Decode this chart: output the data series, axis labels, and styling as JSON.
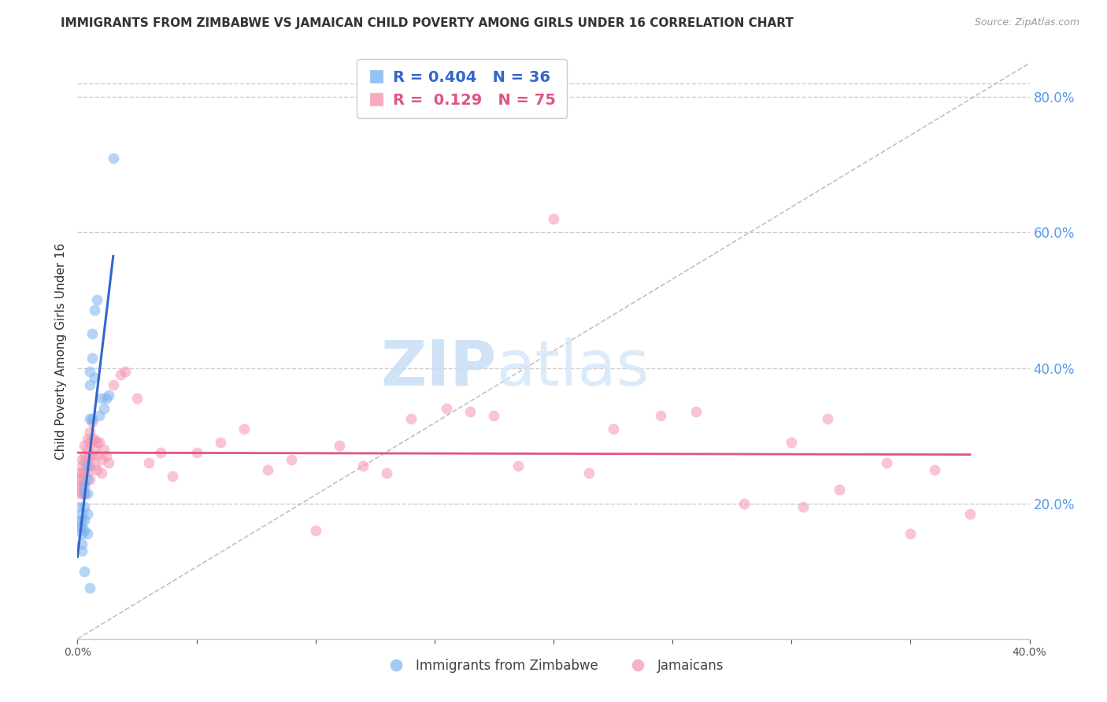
{
  "title": "IMMIGRANTS FROM ZIMBABWE VS JAMAICAN CHILD POVERTY AMONG GIRLS UNDER 16 CORRELATION CHART",
  "source": "Source: ZipAtlas.com",
  "ylabel": "Child Poverty Among Girls Under 16",
  "xlim": [
    0.0,
    0.4
  ],
  "ylim": [
    0.0,
    0.85
  ],
  "yticks_right": [
    0.2,
    0.4,
    0.6,
    0.8
  ],
  "yticks_right_labels": [
    "20.0%",
    "40.0%",
    "60.0%",
    "80.0%"
  ],
  "grid_color": "#cccccc",
  "background_color": "#ffffff",
  "blue_color": "#7ab3ef",
  "pink_color": "#f595b0",
  "blue_line_color": "#3366cc",
  "pink_line_color": "#e05580",
  "diag_color": "#bbbbbb",
  "blue_R": 0.404,
  "blue_N": 36,
  "pink_R": 0.129,
  "pink_N": 75,
  "blue_label": "Immigrants from Zimbabwe",
  "pink_label": "Jamaicans",
  "blue_points_x": [
    0.001,
    0.001,
    0.001,
    0.002,
    0.002,
    0.002,
    0.002,
    0.002,
    0.002,
    0.003,
    0.003,
    0.003,
    0.003,
    0.003,
    0.003,
    0.004,
    0.004,
    0.004,
    0.004,
    0.004,
    0.005,
    0.005,
    0.005,
    0.005,
    0.006,
    0.006,
    0.006,
    0.007,
    0.007,
    0.008,
    0.009,
    0.01,
    0.011,
    0.012,
    0.013,
    0.015
  ],
  "blue_points_y": [
    0.165,
    0.175,
    0.195,
    0.175,
    0.185,
    0.165,
    0.155,
    0.14,
    0.13,
    0.225,
    0.215,
    0.195,
    0.175,
    0.16,
    0.1,
    0.255,
    0.235,
    0.215,
    0.185,
    0.155,
    0.395,
    0.375,
    0.325,
    0.075,
    0.45,
    0.415,
    0.325,
    0.485,
    0.385,
    0.5,
    0.33,
    0.355,
    0.34,
    0.355,
    0.36,
    0.71
  ],
  "pink_points_x": [
    0.001,
    0.001,
    0.001,
    0.001,
    0.002,
    0.002,
    0.002,
    0.002,
    0.002,
    0.002,
    0.003,
    0.003,
    0.003,
    0.003,
    0.003,
    0.003,
    0.004,
    0.004,
    0.004,
    0.004,
    0.005,
    0.005,
    0.005,
    0.005,
    0.005,
    0.006,
    0.006,
    0.006,
    0.007,
    0.007,
    0.007,
    0.008,
    0.008,
    0.008,
    0.009,
    0.01,
    0.01,
    0.011,
    0.012,
    0.013,
    0.015,
    0.018,
    0.02,
    0.025,
    0.03,
    0.035,
    0.04,
    0.05,
    0.06,
    0.07,
    0.08,
    0.09,
    0.1,
    0.11,
    0.12,
    0.13,
    0.14,
    0.155,
    0.165,
    0.175,
    0.185,
    0.2,
    0.215,
    0.225,
    0.245,
    0.26,
    0.28,
    0.3,
    0.315,
    0.34,
    0.36,
    0.375,
    0.305,
    0.32,
    0.35
  ],
  "pink_points_y": [
    0.245,
    0.235,
    0.225,
    0.215,
    0.265,
    0.255,
    0.245,
    0.235,
    0.225,
    0.215,
    0.285,
    0.27,
    0.26,
    0.245,
    0.23,
    0.215,
    0.295,
    0.28,
    0.265,
    0.245,
    0.305,
    0.29,
    0.27,
    0.255,
    0.235,
    0.32,
    0.295,
    0.27,
    0.295,
    0.28,
    0.255,
    0.29,
    0.27,
    0.25,
    0.29,
    0.265,
    0.245,
    0.28,
    0.27,
    0.26,
    0.375,
    0.39,
    0.395,
    0.355,
    0.26,
    0.275,
    0.24,
    0.275,
    0.29,
    0.31,
    0.25,
    0.265,
    0.16,
    0.285,
    0.255,
    0.245,
    0.325,
    0.34,
    0.335,
    0.33,
    0.255,
    0.62,
    0.245,
    0.31,
    0.33,
    0.335,
    0.2,
    0.29,
    0.325,
    0.26,
    0.25,
    0.185,
    0.195,
    0.22,
    0.155
  ]
}
